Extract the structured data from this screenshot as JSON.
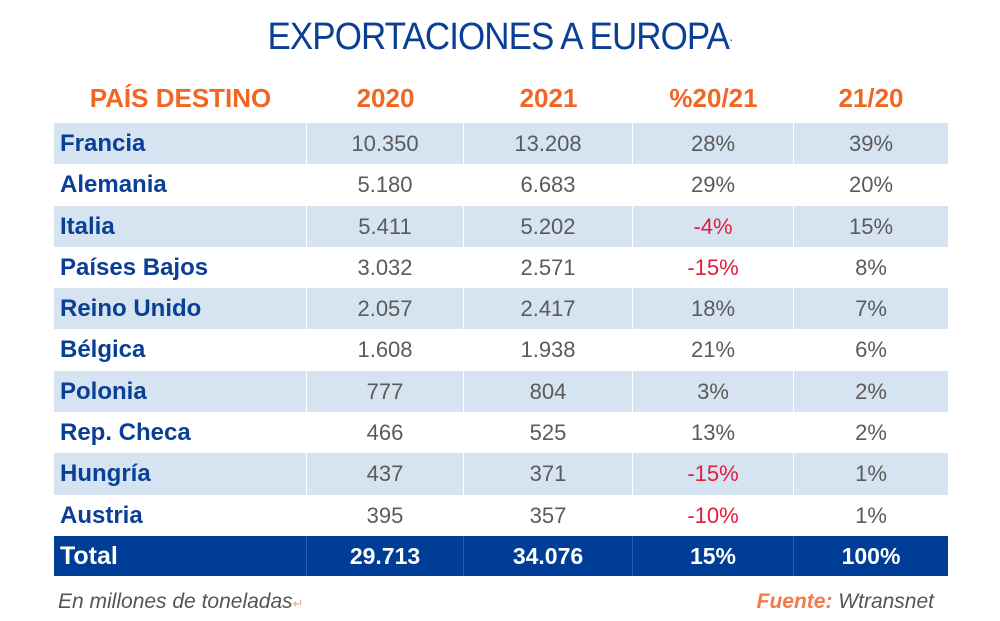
{
  "title": "EXPORTACIONES A EUROPA",
  "columns": [
    "PAÍS DESTINO",
    "2020",
    "2021",
    "%20/21",
    "21/20"
  ],
  "rows": [
    {
      "country": "Francia",
      "y2020": "10.350",
      "y2021": "13.208",
      "change": "28%",
      "share": "39%",
      "negative": false
    },
    {
      "country": "Alemania",
      "y2020": "5.180",
      "y2021": "6.683",
      "change": "29%",
      "share": "20%",
      "negative": false
    },
    {
      "country": "Italia",
      "y2020": "5.411",
      "y2021": "5.202",
      "change": "-4%",
      "share": "15%",
      "negative": true
    },
    {
      "country": "Países Bajos",
      "y2020": "3.032",
      "y2021": "2.571",
      "change": "-15%",
      "share": "8%",
      "negative": true
    },
    {
      "country": "Reino Unido",
      "y2020": "2.057",
      "y2021": "2.417",
      "change": "18%",
      "share": "7%",
      "negative": false
    },
    {
      "country": "Bélgica",
      "y2020": "1.608",
      "y2021": "1.938",
      "change": "21%",
      "share": "6%",
      "negative": false
    },
    {
      "country": "Polonia",
      "y2020": "777",
      "y2021": "804",
      "change": "3%",
      "share": "2%",
      "negative": false
    },
    {
      "country": "Rep. Checa",
      "y2020": "466",
      "y2021": "525",
      "change": "13%",
      "share": "2%",
      "negative": false
    },
    {
      "country": "Hungría",
      "y2020": "437",
      "y2021": "371",
      "change": "-15%",
      "share": "1%",
      "negative": true
    },
    {
      "country": "Austria",
      "y2020": "395",
      "y2021": "357",
      "change": "-10%",
      "share": "1%",
      "negative": true
    }
  ],
  "total": {
    "label": "Total",
    "y2020": "29.713",
    "y2021": "34.076",
    "change": "15%",
    "share": "100%"
  },
  "note": "En millones de toneladas",
  "source": {
    "label": "Fuente:",
    "value": "Wtransnet"
  },
  "colors": {
    "title": "#0a3f96",
    "header": "#f26522",
    "shade": "#d6e3f0",
    "total_bg": "#003d96",
    "negative": "#e01e3c"
  }
}
